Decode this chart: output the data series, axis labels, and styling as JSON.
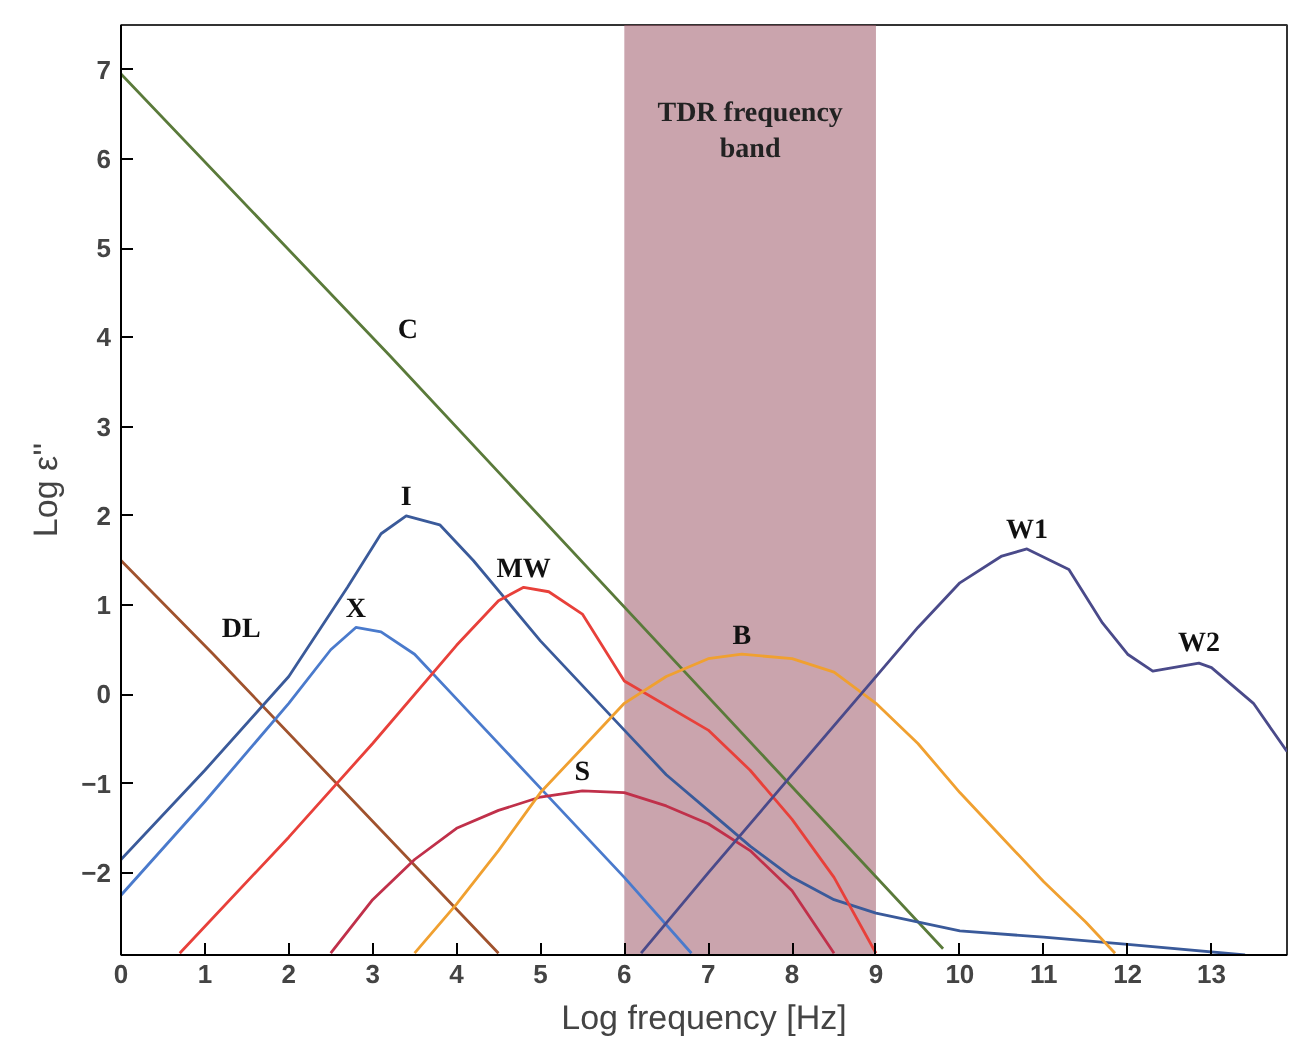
{
  "chart_data": {
    "type": "line",
    "xlabel": "Log frequency [Hz]",
    "ylabel": "Log ε''",
    "xlim": [
      0,
      13.9
    ],
    "ylim": [
      -2.92,
      7.5
    ],
    "xticks": [
      0,
      1,
      2,
      3,
      4,
      5,
      6,
      7,
      8,
      9,
      10,
      11,
      12,
      13
    ],
    "yticks": [
      -2,
      -1,
      0,
      1,
      2,
      3,
      4,
      5,
      6,
      7
    ],
    "grid": false,
    "annotations": [
      {
        "text": "W2",
        "x": 12.85,
        "y": 0.35
      }
    ],
    "marker": "none",
    "line_style": "solid",
    "bands": [
      {
        "axis": "x",
        "from": 6,
        "to": 9,
        "label": "TDR frequency band",
        "color": "#9e5a6a"
      }
    ],
    "series": [
      {
        "name": "C",
        "color": "#5a7a3a",
        "x": [
          0,
          3.2,
          9.8
        ],
        "values": [
          6.95,
          3.8,
          -2.85
        ]
      },
      {
        "name": "DL",
        "color": "#a0522d",
        "x": [
          0,
          1.1,
          4.5
        ],
        "values": [
          1.5,
          0.45,
          -2.9
        ]
      },
      {
        "name": "I",
        "color": "#3a5a9a",
        "x": [
          0,
          1,
          2,
          2.7,
          3.1,
          3.4,
          3.8,
          4.2,
          5,
          6,
          6.5,
          7,
          7.5,
          8,
          8.5,
          9,
          10,
          11,
          12,
          13.4
        ],
        "values": [
          -1.85,
          -0.85,
          0.2,
          1.2,
          1.8,
          2.0,
          1.9,
          1.5,
          0.6,
          -0.4,
          -0.9,
          -1.3,
          -1.7,
          -2.05,
          -2.3,
          -2.45,
          -2.65,
          -2.72,
          -2.8,
          -2.92
        ]
      },
      {
        "name": "X",
        "color": "#4a7acc",
        "x": [
          0,
          1,
          2,
          2.5,
          2.8,
          3.1,
          3.5,
          4,
          5,
          6,
          6.8
        ],
        "values": [
          -2.25,
          -1.2,
          -0.1,
          0.5,
          0.75,
          0.7,
          0.45,
          -0.05,
          -1.05,
          -2.05,
          -2.9
        ]
      },
      {
        "name": "MW",
        "color": "#e8403a",
        "x": [
          0.7,
          2,
          3,
          4,
          4.5,
          4.8,
          5.1,
          5.5,
          6,
          7,
          7.5,
          8,
          8.5,
          9
        ],
        "values": [
          -2.9,
          -1.6,
          -0.55,
          0.55,
          1.05,
          1.2,
          1.15,
          0.9,
          0.15,
          -0.4,
          -0.85,
          -1.4,
          -2.05,
          -2.9
        ]
      },
      {
        "name": "S",
        "color": "#c0304a",
        "x": [
          2.5,
          3,
          3.5,
          4,
          4.5,
          5,
          5.5,
          6,
          6.5,
          7,
          7.5,
          8,
          8.5
        ],
        "values": [
          -2.9,
          -2.3,
          -1.85,
          -1.5,
          -1.3,
          -1.15,
          -1.08,
          -1.1,
          -1.25,
          -1.45,
          -1.75,
          -2.2,
          -2.9
        ]
      },
      {
        "name": "B",
        "color": "#f0a030",
        "x": [
          3.5,
          4,
          4.5,
          5,
          5.5,
          6,
          6.5,
          7,
          7.4,
          8,
          8.5,
          9,
          9.5,
          10,
          10.5,
          11,
          11.5,
          11.85
        ],
        "values": [
          -2.9,
          -2.35,
          -1.75,
          -1.1,
          -0.6,
          -0.1,
          0.2,
          0.4,
          0.45,
          0.4,
          0.25,
          -0.1,
          -0.55,
          -1.1,
          -1.6,
          -2.1,
          -2.55,
          -2.9
        ]
      },
      {
        "name": "W1",
        "color": "#4a4a8a",
        "x": [
          6.2,
          7,
          8,
          9,
          9.5,
          10,
          10.5,
          10.8,
          11.3,
          11.7,
          12,
          12.3,
          12.85,
          13,
          13.5,
          13.9
        ],
        "values": [
          -2.9,
          -2.0,
          -0.9,
          0.2,
          0.75,
          1.25,
          1.55,
          1.63,
          1.4,
          0.8,
          0.45,
          0.26,
          0.35,
          0.3,
          -0.1,
          -0.64
        ]
      }
    ]
  }
}
